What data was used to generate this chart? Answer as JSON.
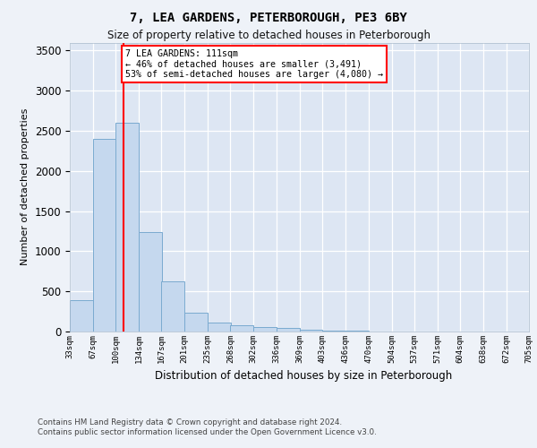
{
  "title": "7, LEA GARDENS, PETERBOROUGH, PE3 6BY",
  "subtitle": "Size of property relative to detached houses in Peterborough",
  "xlabel": "Distribution of detached houses by size in Peterborough",
  "ylabel": "Number of detached properties",
  "bar_color": "#c5d8ee",
  "bar_edge_color": "#7aaad0",
  "fig_bg_color": "#eef2f8",
  "plot_bg_color": "#dde6f3",
  "grid_color": "#ffffff",
  "vline_x": 111,
  "vline_color": "red",
  "annotation_line1": "7 LEA GARDENS: 111sqm",
  "annotation_line2": "← 46% of detached houses are smaller (3,491)",
  "annotation_line3": "53% of semi-detached houses are larger (4,080) →",
  "footer_text": "Contains HM Land Registry data © Crown copyright and database right 2024.\nContains public sector information licensed under the Open Government Licence v3.0.",
  "bins_left": [
    33,
    67,
    100,
    134,
    167,
    201,
    235,
    268,
    302,
    336,
    369,
    403,
    436,
    470,
    504,
    537,
    571,
    604,
    638,
    672
  ],
  "bin_right_end": 705,
  "bin_width": 34,
  "counts": [
    390,
    2400,
    2600,
    1240,
    630,
    240,
    110,
    80,
    55,
    50,
    20,
    12,
    8,
    5,
    3,
    2,
    2,
    1,
    1,
    1
  ],
  "ylim": [
    0,
    3600
  ],
  "yticks": [
    0,
    500,
    1000,
    1500,
    2000,
    2500,
    3000,
    3500
  ],
  "xmin": 33,
  "xmax": 705,
  "xtick_labels": [
    "33sqm",
    "67sqm",
    "100sqm",
    "134sqm",
    "167sqm",
    "201sqm",
    "235sqm",
    "268sqm",
    "302sqm",
    "336sqm",
    "369sqm",
    "403sqm",
    "436sqm",
    "470sqm",
    "504sqm",
    "537sqm",
    "571sqm",
    "604sqm",
    "638sqm",
    "672sqm",
    "705sqm"
  ]
}
